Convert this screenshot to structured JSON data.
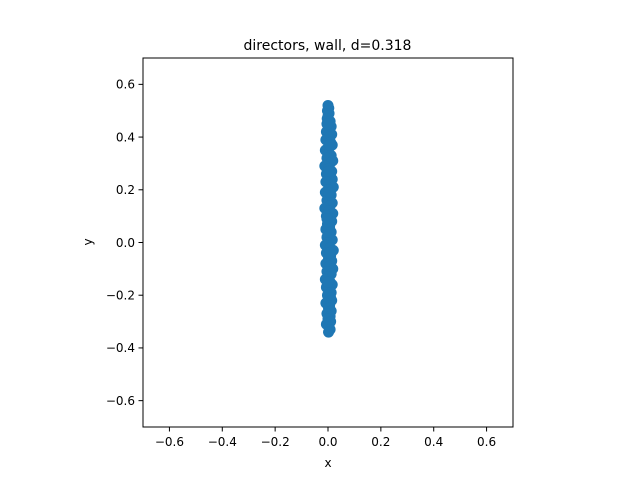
{
  "chart_data": {
    "type": "scatter",
    "title": "directors, wall, d=0.318",
    "xlabel": "x",
    "ylabel": "y",
    "xlim": [
      -0.7,
      0.7
    ],
    "ylim": [
      -0.7,
      0.7
    ],
    "xticks": [
      -0.6,
      -0.4,
      -0.2,
      0.0,
      0.2,
      0.4,
      0.6
    ],
    "yticks": [
      -0.6,
      -0.4,
      -0.2,
      0.0,
      0.2,
      0.4,
      0.6
    ],
    "xtick_labels": [
      "−0.6",
      "−0.4",
      "−0.2",
      "0.0",
      "0.2",
      "0.4",
      "0.6"
    ],
    "ytick_labels": [
      "−0.6",
      "−0.4",
      "−0.2",
      "0.0",
      "0.2",
      "0.4",
      "0.6"
    ],
    "grid": false,
    "marker_color": "#1f77b4",
    "series": [
      {
        "x": [
          0.0,
          0.003,
          -0.002,
          0.004,
          0.0,
          -0.003,
          0.008,
          -0.004,
          0.012,
          0.002,
          -0.006,
          0.014,
          0.006,
          -0.008,
          0.01,
          0.016,
          0.0,
          -0.01,
          0.004,
          0.012,
          -0.004,
          0.018,
          0.008,
          -0.012,
          0.002,
          0.014,
          -0.006,
          0.01,
          0.016,
          -0.008,
          0.004,
          0.02,
          0.0,
          -0.01,
          0.012,
          0.006,
          -0.004,
          0.016,
          0.008,
          -0.012,
          0.002,
          0.018,
          -0.006,
          0.01,
          0.014,
          -0.002,
          0.006,
          -0.008,
          0.012,
          0.004,
          -0.004,
          0.016,
          0.0,
          -0.01,
          0.008,
          0.02,
          -0.006,
          0.01,
          0.002,
          0.014,
          -0.008,
          0.006,
          0.018,
          -0.004,
          0.012,
          0.0,
          -0.01,
          0.008,
          0.016,
          -0.006,
          0.004,
          0.012,
          -0.002,
          0.01,
          0.014,
          -0.008,
          0.006,
          0.002,
          0.012,
          -0.004,
          0.008,
          0.0,
          0.01,
          -0.006,
          0.004,
          0.008,
          -0.002,
          0.006,
          0.002,
          0.004,
          -0.004,
          0.006,
          0.0,
          0.002
        ],
        "y": [
          0.52,
          0.51,
          0.5,
          0.49,
          0.48,
          0.47,
          0.46,
          0.45,
          0.44,
          0.43,
          0.42,
          0.41,
          0.4,
          0.39,
          0.38,
          0.37,
          0.36,
          0.35,
          0.34,
          0.33,
          0.32,
          0.31,
          0.3,
          0.29,
          0.28,
          0.27,
          0.26,
          0.25,
          0.24,
          0.23,
          0.22,
          0.21,
          0.2,
          0.19,
          0.18,
          0.17,
          0.16,
          0.15,
          0.14,
          0.13,
          0.12,
          0.11,
          0.1,
          0.09,
          0.08,
          0.07,
          0.06,
          0.05,
          0.04,
          0.03,
          0.02,
          0.01,
          0.0,
          -0.01,
          -0.02,
          -0.03,
          -0.04,
          -0.05,
          -0.06,
          -0.07,
          -0.08,
          -0.09,
          -0.1,
          -0.11,
          -0.12,
          -0.13,
          -0.14,
          -0.15,
          -0.16,
          -0.17,
          -0.18,
          -0.19,
          -0.2,
          -0.21,
          -0.22,
          -0.23,
          -0.24,
          -0.25,
          -0.26,
          -0.27,
          -0.28,
          -0.29,
          -0.3,
          -0.31,
          -0.32,
          -0.33,
          0.45,
          0.37,
          0.27,
          0.19,
          0.09,
          -0.04,
          -0.15,
          -0.34
        ]
      }
    ]
  }
}
